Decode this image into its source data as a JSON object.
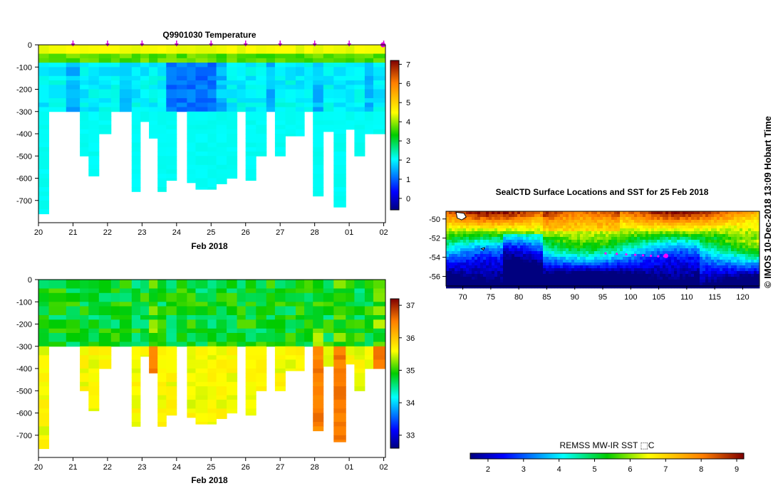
{
  "chart_data": [
    {
      "id": "temperature",
      "type": "heatmap",
      "title": "Q9901030  Temperature",
      "xlabel": "Feb 2018",
      "x_ticks": [
        "20",
        "21",
        "22",
        "23",
        "24",
        "25",
        "26",
        "27",
        "28",
        "01",
        "02"
      ],
      "y_ticks": [
        "0",
        "-100",
        "-200",
        "-300",
        "-400",
        "-500",
        "-600",
        "-700"
      ],
      "xlim": [
        20,
        30.05
      ],
      "ylim": [
        -800,
        0
      ],
      "colorbar_ticks": [
        "0",
        "1",
        "2",
        "3",
        "4",
        "5",
        "6",
        "7"
      ],
      "clim": [
        -0.6,
        7.2
      ],
      "profile_markers_x": [
        21,
        22,
        23,
        24,
        25,
        26,
        27,
        28,
        29,
        30
      ]
    },
    {
      "id": "salinity",
      "type": "heatmap",
      "title": "",
      "xlabel": "Feb 2018",
      "x_ticks": [
        "20",
        "21",
        "22",
        "23",
        "24",
        "25",
        "26",
        "27",
        "28",
        "01",
        "02"
      ],
      "y_ticks": [
        "0",
        "-100",
        "-200",
        "-300",
        "-400",
        "-500",
        "-600",
        "-700"
      ],
      "xlim": [
        20,
        30.05
      ],
      "ylim": [
        -800,
        0
      ],
      "colorbar_ticks": [
        "33",
        "34",
        "35",
        "36",
        "37"
      ],
      "clim": [
        32.6,
        37.2
      ]
    },
    {
      "id": "sst_map",
      "type": "heatmap",
      "title": "SealCTD Surface Locations and SST for 25 Feb 2018",
      "x_ticks": [
        "70",
        "75",
        "80",
        "85",
        "90",
        "95",
        "100",
        "105",
        "110",
        "115",
        "120"
      ],
      "y_ticks": [
        "-50",
        "-52",
        "-54",
        "-56"
      ],
      "xlim": [
        67,
        123
      ],
      "ylim": [
        -57,
        -49.2
      ],
      "track": [
        {
          "lon": 95.5,
          "lat": -53.6
        },
        {
          "lon": 97.5,
          "lat": -53.65
        },
        {
          "lon": 99.2,
          "lat": -53.7
        },
        {
          "lon": 100.8,
          "lat": -53.75
        },
        {
          "lon": 102.2,
          "lat": -53.8
        },
        {
          "lon": 103.6,
          "lat": -53.85
        },
        {
          "lon": 104.9,
          "lat": -53.9
        },
        {
          "lon": 106.0,
          "lat": -53.9
        }
      ],
      "current_position": {
        "lon": 106.3,
        "lat": -53.85
      }
    },
    {
      "id": "sst_colorbar",
      "type": "colorbar",
      "label": "REMSS MW-IR SST ⬚C",
      "ticks": [
        "2",
        "3",
        "4",
        "5",
        "6",
        "7",
        "8",
        "9"
      ],
      "clim": [
        1.5,
        9.2
      ]
    }
  ],
  "timestamp": "©  IMOS 10-Dec-2018 13:09 Hobart Time",
  "colors": {
    "profile_marker": "#d400d4",
    "track": "#ff00ff",
    "background": "#ffffff"
  }
}
